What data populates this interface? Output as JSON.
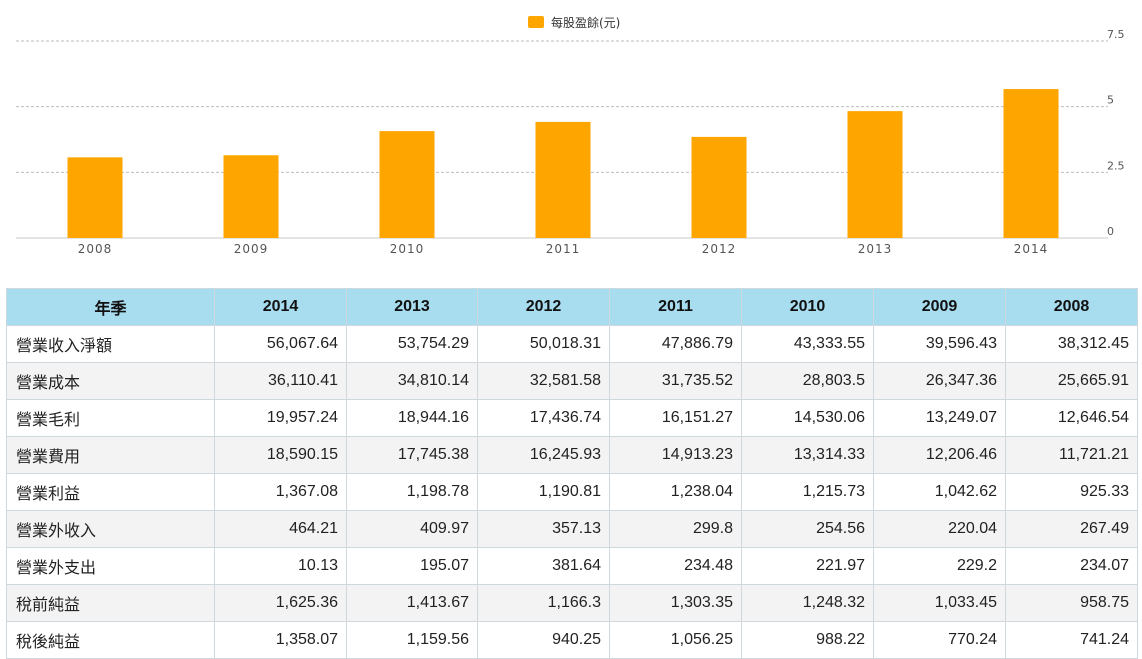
{
  "chart_data": {
    "type": "bar",
    "legend": {
      "label": "每股盈餘(元)",
      "color": "#FFA500",
      "placement": "top-center"
    },
    "categories": [
      "2008",
      "2009",
      "2010",
      "2011",
      "2012",
      "2013",
      "2014"
    ],
    "series": [
      {
        "name": "每股盈餘(元)",
        "values": [
          3.07,
          3.15,
          4.07,
          4.42,
          3.85,
          4.83,
          5.67
        ],
        "color": "#FFA500"
      }
    ],
    "y_ticks": [
      "0",
      "2.5",
      "5",
      "7.5"
    ],
    "ylim": [
      0,
      7.5
    ],
    "grid": true,
    "y_axis_side": "right"
  },
  "table": {
    "header": [
      "年季",
      "2014",
      "2013",
      "2012",
      "2011",
      "2010",
      "2009",
      "2008"
    ],
    "rows": [
      [
        "營業收入淨額",
        "56,067.64",
        "53,754.29",
        "50,018.31",
        "47,886.79",
        "43,333.55",
        "39,596.43",
        "38,312.45"
      ],
      [
        "營業成本",
        "36,110.41",
        "34,810.14",
        "32,581.58",
        "31,735.52",
        "28,803.5",
        "26,347.36",
        "25,665.91"
      ],
      [
        "營業毛利",
        "19,957.24",
        "18,944.16",
        "17,436.74",
        "16,151.27",
        "14,530.06",
        "13,249.07",
        "12,646.54"
      ],
      [
        "營業費用",
        "18,590.15",
        "17,745.38",
        "16,245.93",
        "14,913.23",
        "13,314.33",
        "12,206.46",
        "11,721.21"
      ],
      [
        "營業利益",
        "1,367.08",
        "1,198.78",
        "1,190.81",
        "1,238.04",
        "1,215.73",
        "1,042.62",
        "925.33"
      ],
      [
        "營業外收入",
        "464.21",
        "409.97",
        "357.13",
        "299.8",
        "254.56",
        "220.04",
        "267.49"
      ],
      [
        "營業外支出",
        "10.13",
        "195.07",
        "381.64",
        "234.48",
        "221.97",
        "229.2",
        "234.07"
      ],
      [
        "稅前純益",
        "1,625.36",
        "1,413.67",
        "1,166.3",
        "1,303.35",
        "1,248.32",
        "1,033.45",
        "958.75"
      ],
      [
        "稅後純益",
        "1,358.07",
        "1,159.56",
        "940.25",
        "1,056.25",
        "988.22",
        "770.24",
        "741.24"
      ]
    ]
  }
}
